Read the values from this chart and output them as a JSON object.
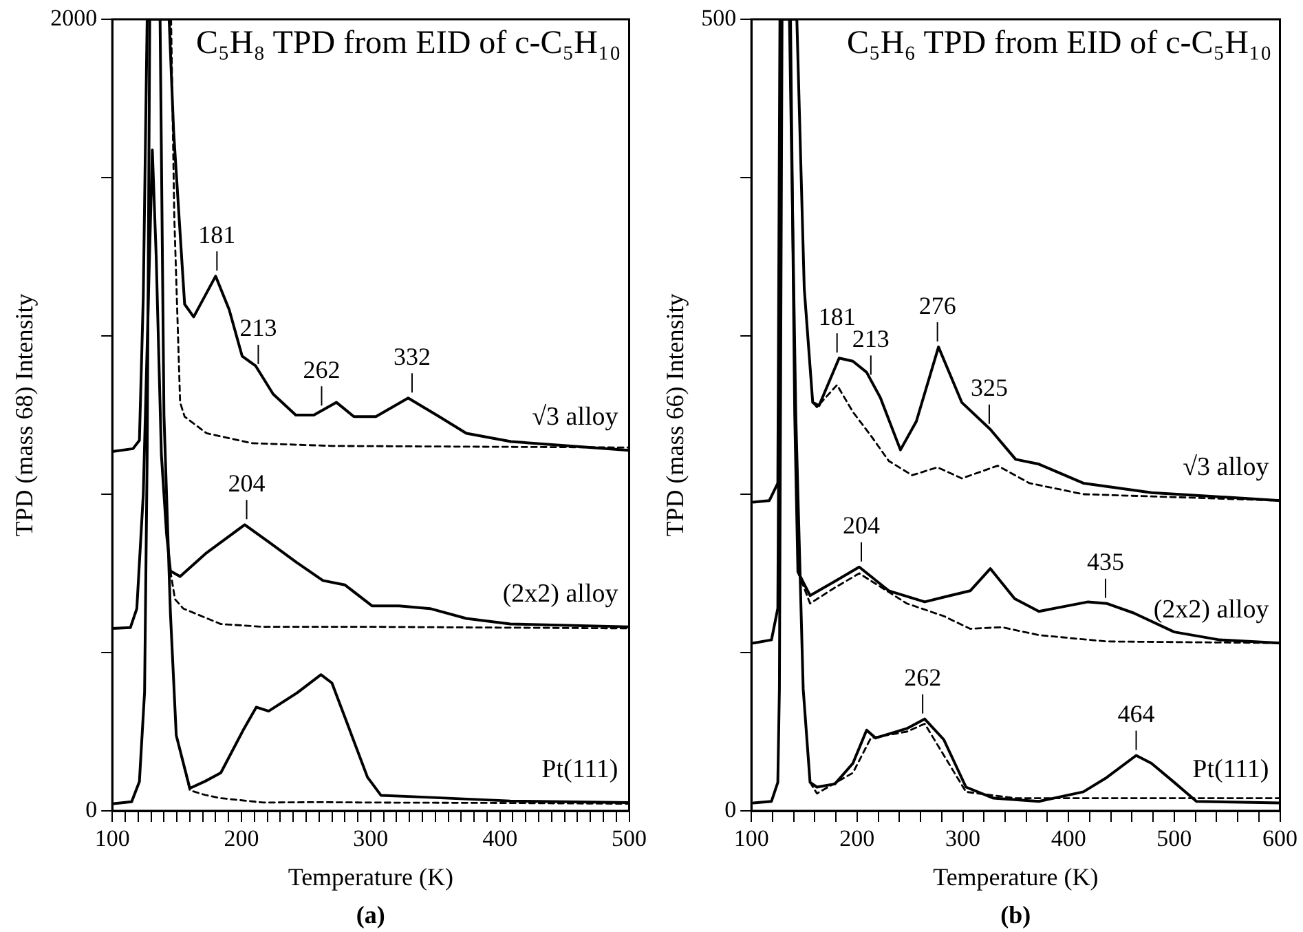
{
  "chart_data": [
    {
      "type": "line",
      "title": "C₅H₈ TPD from EID of c-C₅H₁₀",
      "xlabel": "Temperature (K)",
      "ylabel": "TPD (mass 68) Intensity",
      "xlim": [
        100,
        500
      ],
      "xticks": [
        100,
        {
          "value": 110,
          "label": null
        },
        {
          "value": 120,
          "label": null
        },
        {
          "value": 130,
          "label": null
        },
        {
          "value": 140,
          "label": null
        },
        {
          "value": 150,
          "label": null
        },
        {
          "value": 160,
          "label": null
        },
        {
          "value": 170,
          "label": null
        },
        {
          "value": 180,
          "label": null
        },
        {
          "value": 190,
          "label": null
        },
        200,
        {
          "value": 210,
          "label": null
        },
        {
          "value": 220,
          "label": null
        },
        {
          "value": 230,
          "label": null
        },
        {
          "value": 240,
          "label": null
        },
        {
          "value": 250,
          "label": null
        },
        {
          "value": 260,
          "label": null
        },
        {
          "value": 270,
          "label": null
        },
        {
          "value": 280,
          "label": null
        },
        {
          "value": 290,
          "label": null
        },
        300,
        {
          "value": 310,
          "label": null
        },
        {
          "value": 320,
          "label": null
        },
        {
          "value": 330,
          "label": null
        },
        {
          "value": 340,
          "label": null
        },
        {
          "value": 350,
          "label": null
        },
        {
          "value": 360,
          "label": null
        },
        {
          "value": 370,
          "label": null
        },
        {
          "value": 380,
          "label": null
        },
        {
          "value": 390,
          "label": null
        },
        400,
        {
          "value": 410,
          "label": null
        },
        {
          "value": 420,
          "label": null
        },
        {
          "value": 430,
          "label": null
        },
        {
          "value": 440,
          "label": null
        },
        {
          "value": 450,
          "label": null
        },
        {
          "value": 460,
          "label": null
        },
        {
          "value": 470,
          "label": null
        },
        {
          "value": 480,
          "label": null
        },
        {
          "value": 490,
          "label": null
        },
        500
      ],
      "ylim": [
        0,
        2000
      ],
      "yticks": [
        0,
        {
          "value": 400,
          "label": null
        },
        {
          "value": 800,
          "label": null
        },
        {
          "value": 1200,
          "label": null
        },
        {
          "value": 1600,
          "label": null
        },
        2000
      ],
      "grid": false,
      "legend": false,
      "marker": "none",
      "series": [
        {
          "name": "Pt(111)",
          "color": "#000000",
          "line_style": "solid",
          "x": [
            100,
            115,
            121,
            125,
            127,
            129,
            137,
            140,
            145,
            149.5,
            160,
            172,
            184,
            201,
            211.5,
            221,
            243,
            261.5,
            270,
            284,
            297.5,
            308,
            339,
            408,
            500
          ],
          "values": [
            18,
            23,
            74,
            300,
            900,
            2000,
            2000,
            1000,
            500,
            191,
            57,
            75,
            96,
            202,
            262,
            252,
            298,
            344,
            323,
            202,
            85,
            39,
            35,
            25,
            21
          ]
        },
        {
          "color": "#000000",
          "line_style": "dashed",
          "x": [
            150,
            160,
            172,
            184,
            217,
            260,
            300,
            400,
            500
          ],
          "values": [
            185,
            52,
            40,
            32,
            21,
            22,
            21,
            20,
            18
          ]
        },
        {
          "name": "(2x2) alloy",
          "color": "#000000",
          "line_style": "solid",
          "x": [
            100,
            114,
            119,
            124,
            128,
            131,
            134,
            138,
            142,
            145,
            152.5,
            173,
            202.5,
            222,
            242.5,
            263,
            280,
            301,
            322,
            346,
            374,
            408,
            500
          ],
          "values": [
            461,
            463,
            511,
            800,
            1300,
            1670,
            1400,
            900,
            700,
            606,
            592,
            652,
            723,
            677,
            628,
            582,
            571,
            518,
            518,
            511,
            486,
            472,
            465
          ]
        },
        {
          "color": "#000000",
          "line_style": "dashed",
          "x": [
            145,
            148.5,
            155,
            184,
            217,
            300,
            400,
            500
          ],
          "values": [
            606,
            535,
            511,
            472,
            465,
            465,
            463,
            461
          ]
        },
        {
          "name": "√3 alloy",
          "color": "#000000",
          "line_style": "solid",
          "x": [
            100,
            116,
            121,
            124,
            127,
            144,
            147.5,
            156,
            163,
            180,
            190.5,
            200.5,
            211,
            224.5,
            242,
            256,
            273.5,
            287,
            304,
            329,
            353,
            374,
            408.5,
            500
          ],
          "values": [
            908,
            915,
            936,
            1300,
            2000,
            2000,
            1716,
            1280,
            1248,
            1351,
            1266,
            1149,
            1124,
            1053,
            1000,
            1000,
            1032,
            996,
            996,
            1043,
            996,
            954,
            933,
            911
          ]
        },
        {
          "color": "#000000",
          "line_style": "dashed",
          "x": [
            145.5,
            148,
            152.5,
            156,
            173,
            208,
            270,
            500
          ],
          "values": [
            2000,
            1500,
            1032,
            996,
            954,
            929,
            922,
            918
          ]
        }
      ],
      "annotations": [
        {
          "text": "181",
          "x": 181,
          "y": 1351
        },
        {
          "text": "213",
          "x": 213,
          "y": 1115
        },
        {
          "text": "262",
          "x": 262,
          "y": 1010
        },
        {
          "text": "332",
          "x": 332,
          "y": 1043
        },
        {
          "text": "204",
          "x": 204,
          "y": 723
        },
        "(a)"
      ]
    },
    {
      "type": "line",
      "title": "C₅H₆ TPD from EID of c-C₅H₁₀",
      "xlabel": "Temperature (K)",
      "ylabel": "TPD (mass 66) Intensity",
      "xlim": [
        100,
        600
      ],
      "xticks": [
        100,
        {
          "value": 120,
          "label": null
        },
        {
          "value": 140,
          "label": null
        },
        {
          "value": 160,
          "label": null
        },
        {
          "value": 180,
          "label": null
        },
        200,
        {
          "value": 220,
          "label": null
        },
        {
          "value": 240,
          "label": null
        },
        {
          "value": 260,
          "label": null
        },
        {
          "value": 280,
          "label": null
        },
        300,
        {
          "value": 320,
          "label": null
        },
        {
          "value": 340,
          "label": null
        },
        {
          "value": 360,
          "label": null
        },
        {
          "value": 380,
          "label": null
        },
        400,
        {
          "value": 420,
          "label": null
        },
        {
          "value": 440,
          "label": null
        },
        {
          "value": 460,
          "label": null
        },
        {
          "value": 480,
          "label": null
        },
        500,
        {
          "value": 520,
          "label": null
        },
        {
          "value": 540,
          "label": null
        },
        {
          "value": 560,
          "label": null
        },
        {
          "value": 580,
          "label": null
        },
        600
      ],
      "ylim": [
        0,
        500
      ],
      "yticks": [
        0,
        {
          "value": 100,
          "label": null
        },
        {
          "value": 200,
          "label": null
        },
        {
          "value": 300,
          "label": null
        },
        {
          "value": 400,
          "label": null
        },
        500
      ],
      "grid": false,
      "legend": false,
      "marker": "none",
      "series": [
        {
          "name": "Pt(111)",
          "color": "#000000",
          "line_style": "solid",
          "x": [
            102,
            119,
            125,
            126.5,
            129,
            136,
            142,
            149,
            155.5,
            162,
            179,
            196,
            209,
            217.5,
            247,
            264,
            282,
            303,
            329,
            372,
            414,
            436,
            464,
            478.5,
            500,
            521,
            600
          ],
          "values": [
            5,
            6,
            18,
            77,
            500,
            500,
            250,
            77,
            18,
            15,
            17,
            30,
            51,
            46,
            52,
            58,
            45,
            15,
            8,
            6,
            12,
            21,
            35,
            30,
            18,
            6,
            5
          ]
        },
        {
          "color": "#000000",
          "line_style": "dashed",
          "x": [
            155.5,
            162,
            196,
            213,
            247,
            264,
            303,
            350,
            600
          ],
          "values": [
            18,
            11,
            24,
            46,
            50,
            55,
            12,
            8,
            8
          ]
        },
        {
          "name": "(2x2) alloy",
          "color": "#000000",
          "line_style": "solid",
          "x": [
            102,
            119,
            125,
            128,
            137,
            141,
            144,
            155.5,
            179,
            202,
            230,
            264,
            282,
            307,
            326,
            349,
            372,
            418.5,
            436,
            461.5,
            500,
            543,
            600
          ],
          "values": [
            106,
            108,
            128,
            500,
            500,
            250,
            151,
            136,
            145,
            154,
            139,
            132,
            135,
            139,
            153,
            134,
            126,
            132,
            131,
            125,
            113,
            108,
            106
          ]
        },
        {
          "color": "#000000",
          "line_style": "dashed",
          "x": [
            144,
            155.5,
            179,
            202,
            247,
            282,
            307,
            337,
            372,
            436,
            600
          ],
          "values": [
            151,
            131,
            141,
            150,
            131,
            123,
            115,
            116,
            111,
            107,
            106
          ]
        },
        {
          "name": "√3 alloy",
          "color": "#000000",
          "line_style": "solid",
          "x": [
            102,
            117,
            125,
            127,
            143,
            150,
            158,
            164,
            183,
            196,
            209,
            222,
            241,
            256,
            277,
            299,
            326,
            350,
            372,
            414,
            478.5,
            600
          ],
          "values": [
            195,
            196,
            207,
            500,
            500,
            330,
            258,
            256,
            286,
            284,
            277,
            261,
            228,
            246,
            293,
            258,
            241,
            222,
            219,
            207,
            201,
            196
          ]
        },
        {
          "color": "#000000",
          "line_style": "dashed",
          "x": [
            150,
            158,
            162,
            181,
            196,
            213,
            230,
            252,
            276,
            299,
            333,
            363,
            414,
            600
          ],
          "values": [
            330,
            258,
            255,
            269,
            252,
            237,
            221,
            212,
            217,
            210,
            218,
            207,
            200,
            196
          ]
        }
      ],
      "annotations": [
        {
          "text": "181",
          "x": 181,
          "y": 286
        },
        {
          "text": "213",
          "x": 213,
          "y": 272
        },
        {
          "text": "276",
          "x": 276,
          "y": 293
        },
        {
          "text": "325",
          "x": 325,
          "y": 241
        },
        {
          "text": "204",
          "x": 204,
          "y": 154
        },
        {
          "text": "435",
          "x": 435,
          "y": 131
        },
        {
          "text": "262",
          "x": 262,
          "y": 58
        },
        {
          "text": "464",
          "x": 464,
          "y": 35
        },
        "(b)"
      ]
    }
  ]
}
